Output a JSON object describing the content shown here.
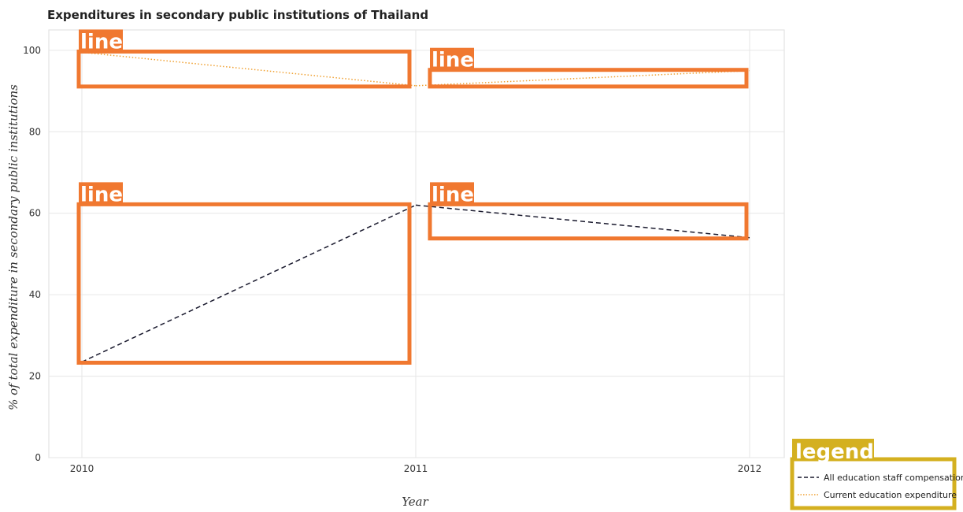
{
  "chart_data": {
    "type": "line",
    "title": "Expenditures in secondary public institutions of Thailand",
    "xlabel": "Year",
    "ylabel": "% of total expenditure in secondary public institutions",
    "categories": [
      "2010",
      "2011",
      "2012"
    ],
    "ylim": [
      0,
      105
    ],
    "yticks": [
      "0",
      "20",
      "40",
      "60",
      "80",
      "100"
    ],
    "grid": true,
    "legend_position": "bottom-right",
    "series": [
      {
        "name": "All education staff compensation",
        "values": [
          23.5,
          62.0,
          54.0
        ],
        "color": "#1a1a2e",
        "dash": "dashed"
      },
      {
        "name": "Current education expenditure",
        "values": [
          99.5,
          91.3,
          95.0
        ],
        "color": "#f0a030",
        "dash": "dotted"
      }
    ],
    "annotations": {
      "series_tag": "line",
      "legend_tag": "legend",
      "highlight_color": "#f07830",
      "legend_highlight_color": "#d4b020"
    }
  }
}
